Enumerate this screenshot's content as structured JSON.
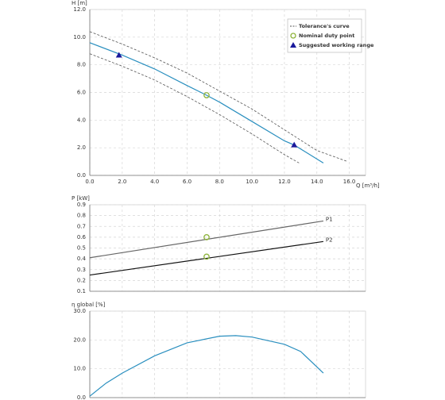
{
  "chart_data": [
    {
      "type": "line",
      "ylabel": "H [m]",
      "xlabel": "Q [m³/h]",
      "xlim": [
        0,
        17
      ],
      "ylim": [
        0,
        12
      ],
      "xticks": [
        {
          "value": 0,
          "label": "0.0"
        },
        {
          "value": 2,
          "label": "2.0"
        },
        {
          "value": 4,
          "label": "4.0"
        },
        {
          "value": 6,
          "label": "6.0"
        },
        {
          "value": 8,
          "label": "8.0"
        },
        {
          "value": 10,
          "label": "10.0"
        },
        {
          "value": 12,
          "label": "12.0"
        },
        {
          "value": 14,
          "label": "14.0"
        },
        {
          "value": 16,
          "label": "16.0"
        }
      ],
      "yticks": [
        {
          "value": 0,
          "label": "0.0"
        },
        {
          "value": 2,
          "label": "2.0"
        },
        {
          "value": 4,
          "label": "4.0"
        },
        {
          "value": 6,
          "label": "6.0"
        },
        {
          "value": 8,
          "label": "8.0"
        },
        {
          "value": 10,
          "label": "10.0"
        },
        {
          "value": 12,
          "label": "12.0"
        }
      ],
      "grid": true,
      "legend": "upper right",
      "series": [
        {
          "name": "Tolerance's curve",
          "style": "dashed",
          "color": "#555555",
          "x": [
            0,
            2,
            4,
            6,
            8,
            10,
            12,
            14,
            15.9
          ],
          "values": [
            10.4,
            9.5,
            8.5,
            7.4,
            6.1,
            4.8,
            3.3,
            1.8,
            1.0
          ]
        },
        {
          "style": "dashed",
          "color": "#555555",
          "x": [
            0,
            2,
            4,
            6,
            8,
            10,
            12,
            12.9
          ],
          "values": [
            8.8,
            7.9,
            6.9,
            5.7,
            4.4,
            3.0,
            1.5,
            0.9
          ]
        },
        {
          "color": "#2a8fbf",
          "x": [
            0,
            2,
            4,
            6,
            7.2,
            8,
            10,
            12,
            12.6,
            14.4
          ],
          "values": [
            9.6,
            8.7,
            7.7,
            6.5,
            5.8,
            5.3,
            3.9,
            2.5,
            2.2,
            0.9
          ]
        },
        {
          "name": "Nominal duty point",
          "marker": "circle",
          "color": "#8db33a",
          "x": [
            7.2
          ],
          "values": [
            5.8
          ]
        },
        {
          "name": "Suggested working range",
          "marker": "triangle",
          "color": "#1a1a9c",
          "x": [
            1.8,
            12.6
          ],
          "values": [
            8.7,
            2.2
          ]
        }
      ]
    },
    {
      "type": "line",
      "ylabel": "P [kW]",
      "xlim": [
        0,
        17
      ],
      "ylim": [
        0.1,
        0.9
      ],
      "yticks": [
        0.1,
        0.2,
        0.3,
        0.4,
        0.5,
        0.6,
        0.7,
        0.8,
        0.9
      ],
      "grid": true,
      "series": [
        {
          "name": "P1",
          "color": "#666666",
          "x": [
            0,
            14.4
          ],
          "values": [
            0.41,
            0.75
          ]
        },
        {
          "name": "P2",
          "color": "#111111",
          "x": [
            0,
            14.4
          ],
          "values": [
            0.25,
            0.56
          ]
        },
        {
          "marker": "circle",
          "color": "#8db33a",
          "x": [
            7.2,
            7.2
          ],
          "values": [
            0.6,
            0.42
          ]
        }
      ]
    },
    {
      "type": "line",
      "ylabel": "η global [%]",
      "xlim": [
        0,
        17
      ],
      "ylim": [
        0,
        30
      ],
      "yticks": [
        {
          "value": 0,
          "label": "0.0"
        },
        {
          "value": 10,
          "label": "10.0"
        },
        {
          "value": 20,
          "label": "20.0"
        },
        {
          "value": 30,
          "label": "30.0"
        }
      ],
      "grid": true,
      "series": [
        {
          "color": "#2a8fbf",
          "x": [
            0,
            1,
            2,
            4,
            6,
            8,
            9,
            10,
            12,
            13,
            14.4
          ],
          "values": [
            0.5,
            5,
            8.5,
            14.5,
            19,
            21.3,
            21.5,
            21,
            18.5,
            16,
            8.5
          ]
        }
      ]
    }
  ]
}
